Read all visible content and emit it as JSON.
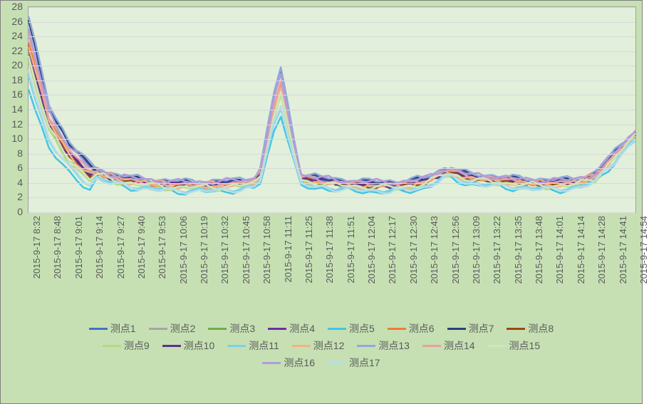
{
  "chart": {
    "type": "line",
    "background_color": "#c6e0b4",
    "plot_background_color": "#e2efda",
    "border_color": "#7f7f7f",
    "grid_color": "#d9d9d9",
    "text_color": "#595959",
    "label_fontsize": 14,
    "tick_fontsize": 13,
    "line_width": 2.5,
    "ylim": [
      0,
      28
    ],
    "ytick_step": 2,
    "y_ticks": [
      0,
      2,
      4,
      6,
      8,
      10,
      12,
      14,
      16,
      18,
      20,
      22,
      24,
      26,
      28
    ],
    "x_labels": [
      "2015-9-17 8:32",
      "2015-9-17 8:48",
      "2015-9-17 9:01",
      "2015-9-17 9:14",
      "2015-9-17 9:27",
      "2015-9-17 9:40",
      "2015-9-17 9:53",
      "2015-9-17 10:06",
      "2015-9-17 10:19",
      "2015-9-17 10:32",
      "2015-9-17 10:45",
      "2015-9-17 10:58",
      "2015-9-17 11:11",
      "2015-9-17 11:25",
      "2015-9-17 11:38",
      "2015-9-17 11:51",
      "2015-9-17 12:04",
      "2015-9-17 12:17",
      "2015-9-17 12:30",
      "2015-9-17 12:43",
      "2015-9-17 12:56",
      "2015-9-17 13:09",
      "2015-9-17 13:22",
      "2015-9-17 13:35",
      "2015-9-17 13:48",
      "2015-9-17 14:01",
      "2015-9-17 14:14",
      "2015-9-17 14:28",
      "2015-9-17 14:41",
      "2015-9-17 14:54"
    ],
    "series": [
      {
        "label": "测点1",
        "color": "#4472c4"
      },
      {
        "label": "测点2",
        "color": "#a5a5a5"
      },
      {
        "label": "测点3",
        "color": "#70ad47"
      },
      {
        "label": "测点4",
        "color": "#7030a0"
      },
      {
        "label": "测点5",
        "color": "#43c5e4"
      },
      {
        "label": "测点6",
        "color": "#ed7d31"
      },
      {
        "label": "测点7",
        "color": "#264478"
      },
      {
        "label": "测点8",
        "color": "#9e480e"
      },
      {
        "label": "测点9",
        "color": "#b7d984"
      },
      {
        "label": "测点10",
        "color": "#5b338a"
      },
      {
        "label": "测点11",
        "color": "#7cd1e8"
      },
      {
        "label": "测点12",
        "color": "#f4b183"
      },
      {
        "label": "测点13",
        "color": "#8fa8db"
      },
      {
        "label": "测点14",
        "color": "#e8a0a0"
      },
      {
        "label": "测点15",
        "color": "#d0e5bd"
      },
      {
        "label": "测点16",
        "color": "#b19cd9"
      },
      {
        "label": "测点17",
        "color": "#b4dde8"
      }
    ],
    "base_shape": [
      26,
      14,
      9,
      6,
      5,
      4.5,
      4.2,
      4,
      4,
      4,
      4.2,
      4.5,
      20,
      5,
      4.5,
      4.2,
      4,
      4,
      4,
      4.5,
      6,
      5,
      4.8,
      4.5,
      4.3,
      4.2,
      4.3,
      5,
      8,
      11
    ],
    "series_offsets": [
      0,
      -0.5,
      -1.0,
      -0.3,
      -2.0,
      -0.8,
      0.2,
      -0.6,
      -1.2,
      -0.4,
      -1.5,
      -0.7,
      0.5,
      -0.2,
      -0.9,
      0.3,
      -1.8
    ],
    "series_peak_scale": [
      1.0,
      0.9,
      0.85,
      0.88,
      0.7,
      0.92,
      1.0,
      0.87,
      0.82,
      0.86,
      0.75,
      0.9,
      1.02,
      0.93,
      0.84,
      0.95,
      0.78
    ],
    "legend_rows": 3,
    "legend_position": "bottom"
  }
}
